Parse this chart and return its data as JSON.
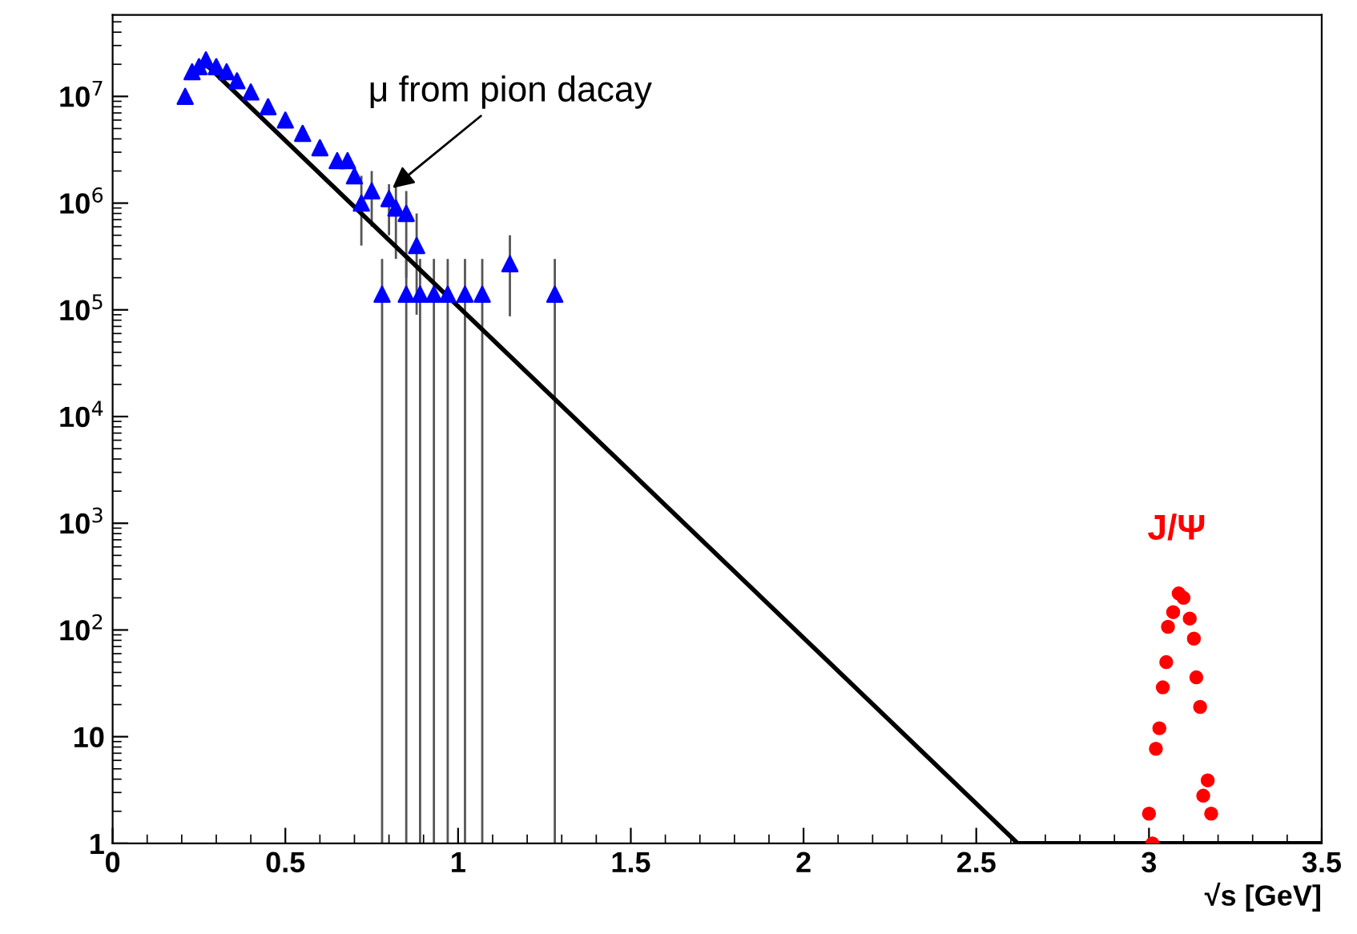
{
  "chart_data": {
    "type": "scatter",
    "xlabel": "√s [GeV]",
    "log": "y",
    "xlim": [
      0,
      3.5
    ],
    "xticks": [
      0,
      0.5,
      1,
      1.5,
      2,
      2.5,
      3,
      3.5
    ],
    "ylim": [
      1,
      58000000
    ],
    "yticks": [
      1,
      10,
      {
        "value": 100,
        "label": "10$^{2}$"
      },
      {
        "value": 1000,
        "label": "10$^{3}$"
      },
      {
        "value": 10000,
        "label": "10$^{4}$"
      },
      {
        "value": 100000,
        "label": "10$^{5}$"
      },
      {
        "value": 1000000,
        "label": "10$^{6}$"
      },
      {
        "value": 10000000,
        "label": "10$^{7}$"
      }
    ],
    "grid": false,
    "legend": false,
    "series": [
      {
        "marker": "triangle",
        "color": "#0000ff",
        "x": [
          0.21,
          0.23,
          0.25,
          0.27,
          0.3,
          0.33,
          0.36,
          0.4,
          0.45,
          0.5,
          0.55,
          0.6,
          0.65,
          0.68,
          0.7,
          0.72,
          0.75,
          0.8,
          0.82,
          0.85,
          0.88,
          0.78,
          0.85,
          0.89,
          0.93,
          0.97,
          1.02,
          1.07,
          1.15,
          1.28
        ],
        "values": [
          10000000,
          17000000,
          19000000,
          22000000,
          19000000,
          17000000,
          14000000,
          11000000,
          8000000,
          6000000,
          4500000,
          3300000,
          2500000,
          2500000,
          1800000,
          1000000,
          1300000,
          1100000,
          900000,
          800000,
          400000,
          140000,
          140000,
          140000,
          140000,
          140000,
          140000,
          140000,
          270000,
          140000
        ],
        "errors": [
          null,
          null,
          null,
          null,
          null,
          null,
          null,
          null,
          null,
          null,
          null,
          null,
          null,
          null,
          null,
          [
            400000,
            1800000
          ],
          [
            600000,
            2000000
          ],
          [
            500000,
            1500000
          ],
          [
            300000,
            1500000
          ],
          [
            200000,
            1300000
          ],
          [
            90000,
            800000
          ],
          [
            1,
            300000
          ],
          [
            1,
            300000
          ],
          [
            1,
            300000
          ],
          [
            1,
            300000
          ],
          [
            1,
            300000
          ],
          [
            1,
            300000
          ],
          [
            1,
            300000
          ],
          [
            87000,
            500000
          ],
          [
            1,
            300000
          ]
        ]
      },
      {
        "type": "line",
        "marker": "none",
        "line_style": "solid",
        "color": "#000000",
        "x": [
          0.27,
          2.62,
          3.5
        ],
        "values": [
          20000000,
          1,
          1
        ]
      },
      {
        "marker": "circle",
        "color": "#ff0000",
        "x": [
          3.0,
          3.01,
          3.02,
          3.03,
          3.04,
          3.05,
          3.055,
          3.07,
          3.086,
          3.1,
          3.118,
          3.13,
          3.137,
          3.148,
          3.157,
          3.17,
          3.18
        ],
        "values": [
          1.9,
          1,
          7.7,
          12,
          29,
          50,
          107,
          147,
          220,
          200,
          128,
          83,
          36,
          19,
          2.8,
          3.9,
          1.9
        ]
      }
    ],
    "annotations": [
      {
        "text": "μ from pion dacay",
        "x": 0.8,
        "y": 1300000
      },
      "J/Ψ"
    ]
  }
}
